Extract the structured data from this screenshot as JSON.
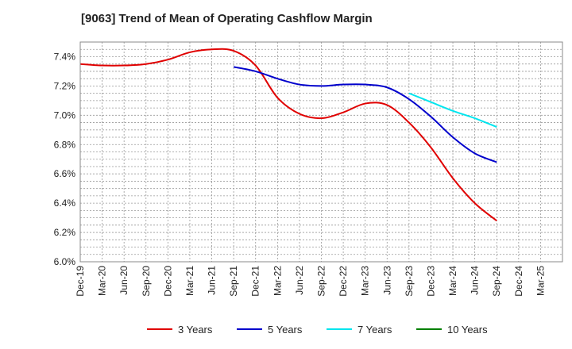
{
  "chart_data": {
    "type": "line",
    "title": "[9063]  Trend of Mean of Operating Cashflow Margin",
    "xlabel": "",
    "ylabel": "",
    "ylim": [
      6.0,
      7.5
    ],
    "grid": true,
    "legend_position": "bottom",
    "y_ticks": [
      "6.0%",
      "6.2%",
      "6.4%",
      "6.6%",
      "6.8%",
      "7.0%",
      "7.2%",
      "7.4%"
    ],
    "y_tick_values": [
      6.0,
      6.2,
      6.4,
      6.6,
      6.8,
      7.0,
      7.2,
      7.4
    ],
    "categories": [
      "Dec-19",
      "Mar-20",
      "Jun-20",
      "Sep-20",
      "Dec-20",
      "Mar-21",
      "Jun-21",
      "Sep-21",
      "Dec-21",
      "Mar-22",
      "Jun-22",
      "Sep-22",
      "Dec-22",
      "Mar-23",
      "Jun-23",
      "Sep-23",
      "Dec-23",
      "Mar-24",
      "Jun-24",
      "Sep-24",
      "Dec-24",
      "Mar-25"
    ],
    "series": [
      {
        "name": "3 Years",
        "color": "#e00000",
        "values": [
          7.35,
          7.34,
          7.34,
          7.35,
          7.38,
          7.43,
          7.45,
          7.44,
          7.34,
          7.12,
          7.01,
          6.98,
          7.02,
          7.08,
          7.07,
          6.95,
          6.78,
          6.57,
          6.4,
          6.28,
          null,
          null
        ]
      },
      {
        "name": "5 Years",
        "color": "#0000cc",
        "values": [
          null,
          null,
          null,
          null,
          null,
          null,
          null,
          7.33,
          7.3,
          7.25,
          7.21,
          7.2,
          7.21,
          7.21,
          7.19,
          7.11,
          6.99,
          6.85,
          6.74,
          6.68,
          null,
          null
        ]
      },
      {
        "name": "7 Years",
        "color": "#00e5ee",
        "values": [
          null,
          null,
          null,
          null,
          null,
          null,
          null,
          null,
          null,
          null,
          null,
          null,
          null,
          null,
          null,
          7.15,
          7.09,
          7.03,
          6.98,
          6.92,
          null,
          null
        ]
      },
      {
        "name": "10 Years",
        "color": "#008000",
        "values": [
          null,
          null,
          null,
          null,
          null,
          null,
          null,
          null,
          null,
          null,
          null,
          null,
          null,
          null,
          null,
          null,
          null,
          null,
          null,
          null,
          null,
          null
        ]
      }
    ]
  }
}
